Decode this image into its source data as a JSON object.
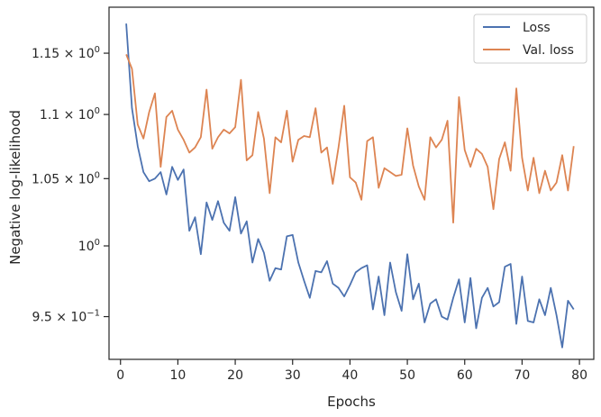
{
  "chart_data": {
    "type": "line",
    "title": "",
    "xlabel": "Epochs",
    "ylabel": "Negative log-likelihood",
    "yscale": "log",
    "xlim": [
      -2,
      82.5
    ],
    "ylim": [
      0.921,
      1.189
    ],
    "x_ticks": [
      0,
      10,
      20,
      30,
      40,
      50,
      60,
      70,
      80
    ],
    "y_ticks": [
      {
        "value": 0.95,
        "mantissa": "9.5",
        "base": "10",
        "exp": "−1"
      },
      {
        "value": 1.0,
        "mantissa": "",
        "base": "10",
        "exp": "0"
      },
      {
        "value": 1.05,
        "mantissa": "1.05",
        "base": "10",
        "exp": "0"
      },
      {
        "value": 1.1,
        "mantissa": "1.1",
        "base": "10",
        "exp": "0"
      },
      {
        "value": 1.15,
        "mantissa": "1.15",
        "base": "10",
        "exp": "0"
      }
    ],
    "grid": false,
    "legend_position": "top-right",
    "x": [
      1,
      2,
      3,
      4,
      5,
      6,
      7,
      8,
      9,
      10,
      11,
      12,
      13,
      14,
      15,
      16,
      17,
      18,
      19,
      20,
      21,
      22,
      23,
      24,
      25,
      26,
      27,
      28,
      29,
      30,
      31,
      32,
      33,
      34,
      35,
      36,
      37,
      38,
      39,
      40,
      41,
      42,
      43,
      44,
      45,
      46,
      47,
      48,
      49,
      50,
      51,
      52,
      53,
      54,
      55,
      56,
      57,
      58,
      59,
      60,
      61,
      62,
      63,
      64,
      65,
      66,
      67,
      68,
      69,
      70,
      71,
      72,
      73,
      74,
      75,
      76,
      77,
      78,
      79
    ],
    "series": [
      {
        "name": "Loss",
        "color": "#4c72b0",
        "values": [
          1.175,
          1.105,
          1.075,
          1.055,
          1.048,
          1.05,
          1.055,
          1.038,
          1.059,
          1.049,
          1.057,
          1.011,
          1.021,
          0.994,
          1.032,
          1.019,
          1.033,
          1.017,
          1.011,
          1.036,
          1.009,
          1.018,
          0.988,
          1.005,
          0.995,
          0.975,
          0.984,
          0.983,
          1.007,
          1.008,
          0.988,
          0.975,
          0.963,
          0.982,
          0.981,
          0.989,
          0.973,
          0.97,
          0.964,
          0.972,
          0.981,
          0.984,
          0.986,
          0.955,
          0.978,
          0.951,
          0.988,
          0.967,
          0.954,
          0.994,
          0.962,
          0.973,
          0.946,
          0.959,
          0.962,
          0.95,
          0.948,
          0.963,
          0.976,
          0.946,
          0.977,
          0.942,
          0.963,
          0.97,
          0.957,
          0.96,
          0.985,
          0.987,
          0.945,
          0.978,
          0.947,
          0.946,
          0.962,
          0.951,
          0.97,
          0.951,
          0.929,
          0.961,
          0.955
        ]
      },
      {
        "name": "Val. loss",
        "color": "#dd8452",
        "values": [
          1.149,
          1.137,
          1.092,
          1.081,
          1.102,
          1.117,
          1.059,
          1.098,
          1.103,
          1.088,
          1.08,
          1.07,
          1.074,
          1.082,
          1.12,
          1.073,
          1.082,
          1.088,
          1.085,
          1.09,
          1.128,
          1.064,
          1.068,
          1.102,
          1.081,
          1.039,
          1.082,
          1.078,
          1.103,
          1.063,
          1.08,
          1.083,
          1.082,
          1.105,
          1.07,
          1.074,
          1.046,
          1.074,
          1.107,
          1.051,
          1.047,
          1.034,
          1.079,
          1.082,
          1.043,
          1.058,
          1.055,
          1.052,
          1.053,
          1.089,
          1.06,
          1.044,
          1.034,
          1.082,
          1.074,
          1.08,
          1.095,
          1.017,
          1.114,
          1.072,
          1.059,
          1.073,
          1.069,
          1.059,
          1.027,
          1.065,
          1.078,
          1.056,
          1.121,
          1.066,
          1.041,
          1.066,
          1.039,
          1.056,
          1.041,
          1.047,
          1.068,
          1.041,
          1.075
        ]
      }
    ]
  }
}
